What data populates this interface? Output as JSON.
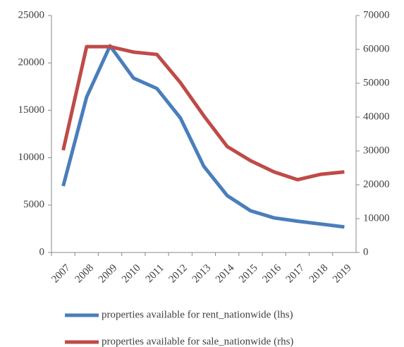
{
  "chart_data": {
    "type": "line",
    "categories": [
      "2007",
      "2008",
      "2009",
      "2010",
      "2011",
      "2012",
      "2013",
      "2014",
      "2015",
      "2016",
      "2017",
      "2018",
      "2019"
    ],
    "series": [
      {
        "name": "properties available for rent_nationwide (lhs)",
        "color": "#4a7ebb",
        "axis": "y",
        "values": [
          7000,
          16400,
          21800,
          18400,
          17300,
          14200,
          9100,
          6000,
          4400,
          3650,
          3300,
          3000,
          2700
        ]
      },
      {
        "name": "properties available for sale_nationwide (rhs)",
        "color": "#be4b48",
        "axis": "y2",
        "values": [
          30200,
          60800,
          60800,
          59200,
          58500,
          50200,
          40400,
          31300,
          27100,
          23800,
          21500,
          23100,
          23800
        ]
      }
    ],
    "ylim": [
      0,
      25000
    ],
    "yticks": [
      0,
      5000,
      10000,
      15000,
      20000,
      25000
    ],
    "y2lim": [
      0,
      70000
    ],
    "y2ticks": [
      0,
      10000,
      20000,
      30000,
      40000,
      50000,
      60000,
      70000
    ],
    "grid": false,
    "legend": "bottom"
  }
}
